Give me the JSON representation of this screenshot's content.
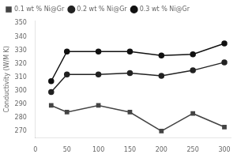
{
  "chart_data": {
    "type": "line",
    "ylabel": "Conductivity (W/M K)",
    "x": [
      25,
      50,
      100,
      150,
      200,
      250,
      300
    ],
    "series": [
      {
        "name": "0.1 wt % Ni@Gr",
        "color": "#444444",
        "marker": "square",
        "values": [
          289,
          284,
          289,
          284,
          270,
          283,
          273
        ]
      },
      {
        "name": "0.2 wt % Ni@Gr",
        "color": "#222222",
        "marker": "circle",
        "values": [
          299,
          312,
          312,
          313,
          311,
          315,
          321
        ]
      },
      {
        "name": "0.3 wt % Ni@Gr",
        "color": "#111111",
        "marker": "circle",
        "values": [
          307,
          329,
          329,
          329,
          326,
          327,
          335
        ]
      }
    ],
    "xlim": [
      0,
      310
    ],
    "ylim": [
      265,
      352
    ],
    "xticks": [
      0,
      50,
      100,
      150,
      200,
      250,
      300
    ],
    "yticks": [
      270,
      280,
      290,
      300,
      310,
      320,
      330,
      340,
      350
    ],
    "grid": false,
    "legend": "upper left"
  }
}
